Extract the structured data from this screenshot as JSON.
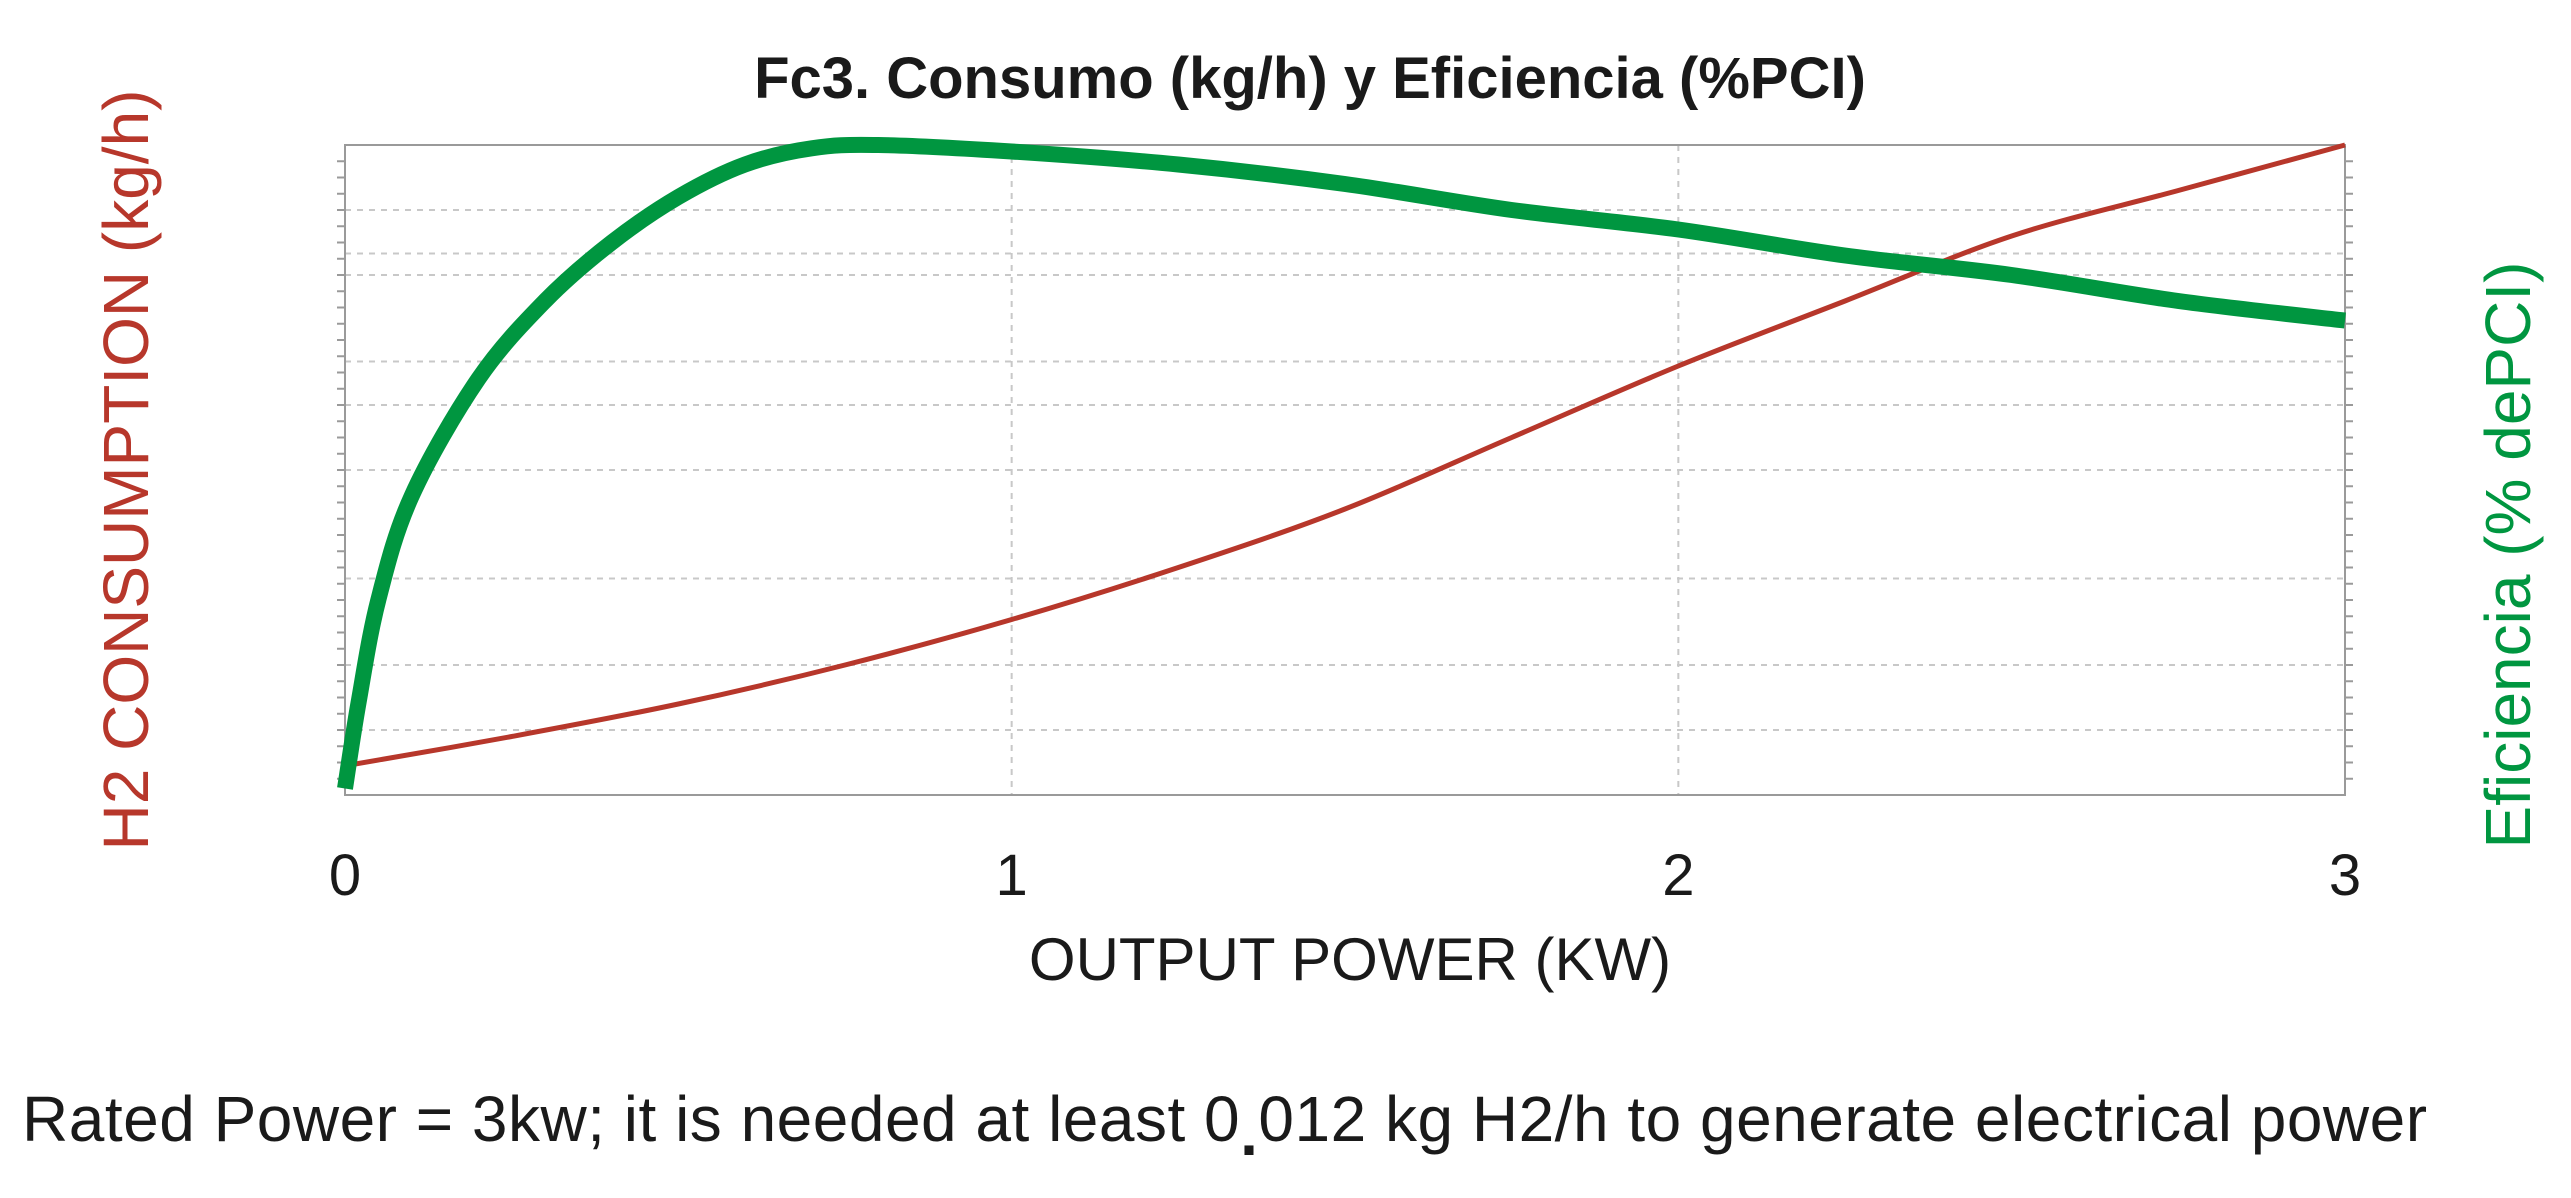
{
  "chart_data": {
    "type": "line",
    "title": "Fc3. Consumo (kg/h) y Eficiencia (%PCI)",
    "xlabel": "OUTPUT POWER (KW)",
    "ylabel_left": "H2 CONSUMPTION (kg/h)",
    "ylabel_right": "Eficiencia (% dePCI)",
    "xlim": [
      0,
      3
    ],
    "xticks": [
      "0",
      "1",
      "2",
      "3"
    ],
    "ylim_left": [
      0,
      1
    ],
    "ylim_right": [
      0,
      1
    ],
    "grid": true,
    "series": [
      {
        "name": "H2 consumption",
        "axis": "left",
        "color": "#b7372b",
        "x": [
          0.0,
          0.25,
          0.5,
          0.75,
          1.0,
          1.25,
          1.5,
          1.75,
          2.0,
          2.25,
          2.5,
          2.75,
          3.0
        ],
        "y": [
          0.045,
          0.09,
          0.14,
          0.2,
          0.27,
          0.35,
          0.44,
          0.55,
          0.66,
          0.76,
          0.86,
          0.93,
          1.0
        ]
      },
      {
        "name": "Eficiencia",
        "axis": "right",
        "color": "#009640",
        "x": [
          0.0,
          0.02,
          0.05,
          0.1,
          0.2,
          0.3,
          0.4,
          0.5,
          0.6,
          0.7,
          0.8,
          1.0,
          1.25,
          1.5,
          1.75,
          2.0,
          2.25,
          2.5,
          2.75,
          3.0
        ],
        "y": [
          0.01,
          0.14,
          0.3,
          0.46,
          0.64,
          0.76,
          0.85,
          0.92,
          0.97,
          0.995,
          1.0,
          0.99,
          0.97,
          0.94,
          0.9,
          0.87,
          0.83,
          0.8,
          0.76,
          0.73
        ]
      }
    ]
  },
  "caption": {
    "before": "Rated Power = 3kw; it is needed at least 0",
    "separator": ".",
    "after": "012 kg H2/h to generate electrical power"
  }
}
